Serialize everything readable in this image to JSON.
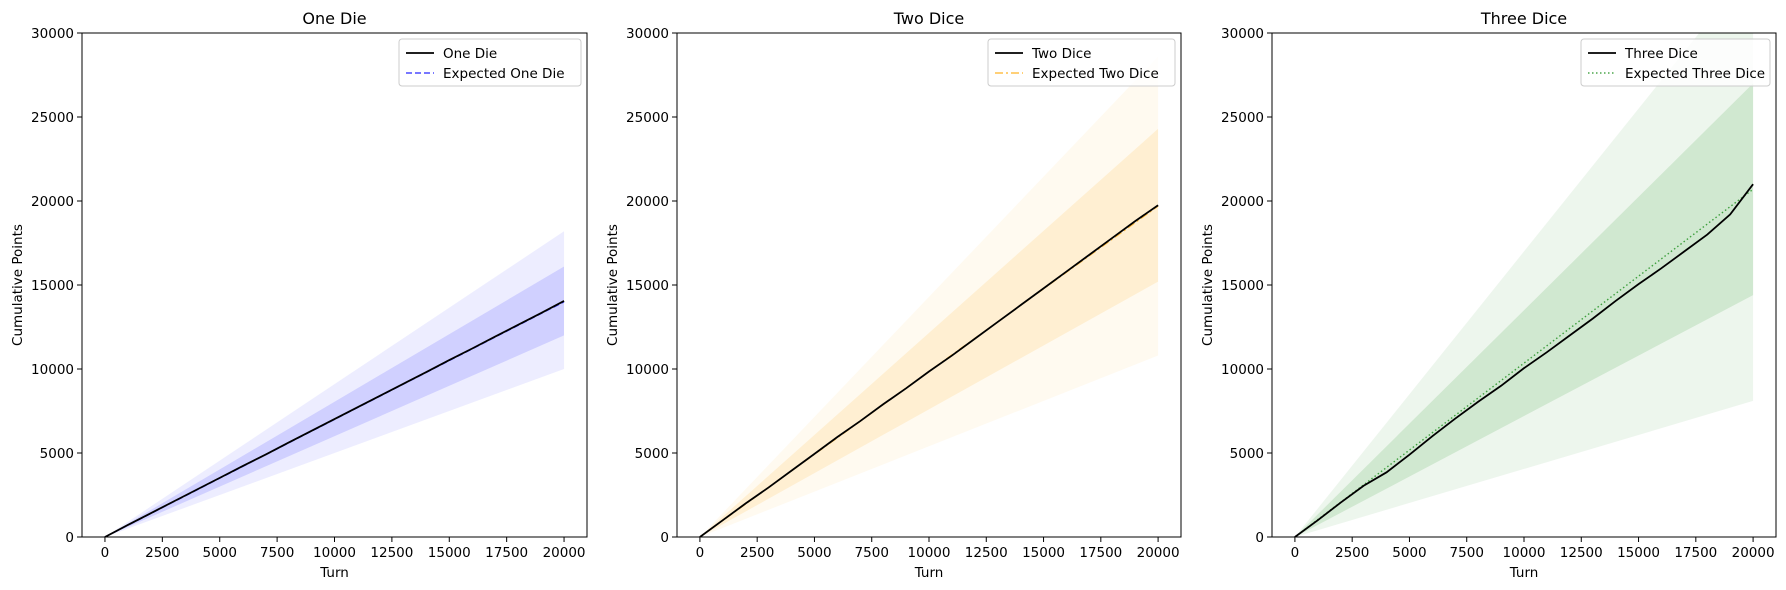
{
  "colors": {
    "actual": "#000000",
    "one_die": "#0000ff",
    "two_dice": "#ffa500",
    "three_dice": "#008000",
    "legend_frame": "#cccccc"
  },
  "chart_data": [
    {
      "type": "line",
      "title": "One Die",
      "xlabel": "Turn",
      "ylabel": "Cumulative Points",
      "xlim": [
        -1000,
        21000
      ],
      "ylim": [
        0,
        30000
      ],
      "xticks": [
        0,
        2500,
        5000,
        7500,
        10000,
        12500,
        15000,
        17500,
        20000
      ],
      "yticks": [
        0,
        5000,
        10000,
        15000,
        20000,
        25000,
        30000
      ],
      "xtick_labels": [
        "0",
        "2500",
        "5000",
        "7500",
        "10000",
        "12500",
        "15000",
        "17500",
        "20000"
      ],
      "ytick_labels": [
        "0",
        "5000",
        "10000",
        "15000",
        "20000",
        "25000",
        "30000"
      ],
      "grid": false,
      "legend_position": "upper right",
      "accent": "#0000ff",
      "bands": [
        {
          "opacity": 0.07,
          "x": [
            0,
            20000
          ],
          "lower": [
            0,
            10000
          ],
          "upper": [
            0,
            18200
          ]
        },
        {
          "opacity": 0.12,
          "x": [
            0,
            20000
          ],
          "lower": [
            0,
            12000
          ],
          "upper": [
            0,
            16100
          ]
        }
      ],
      "series": [
        {
          "name": "One Die",
          "role": "actual",
          "style": "solid",
          "x": [
            0,
            1000,
            2000,
            3000,
            4000,
            5000,
            6000,
            7000,
            8000,
            9000,
            10000,
            11000,
            12000,
            13000,
            14000,
            15000,
            16000,
            17000,
            18000,
            19000,
            20000
          ],
          "y": [
            0,
            720,
            1420,
            2120,
            2820,
            3520,
            4220,
            4910,
            5620,
            6320,
            7020,
            7720,
            8420,
            9120,
            9820,
            10530,
            11220,
            11930,
            12630,
            13330,
            14050
          ]
        },
        {
          "name": "Expected One Die",
          "role": "expected",
          "style": "dashed",
          "x": [
            0,
            20000
          ],
          "y": [
            0,
            14000
          ]
        }
      ]
    },
    {
      "type": "line",
      "title": "Two Dice",
      "xlabel": "Turn",
      "ylabel": "Cumulative Points",
      "xlim": [
        -1000,
        21000
      ],
      "ylim": [
        0,
        30000
      ],
      "xticks": [
        0,
        2500,
        5000,
        7500,
        10000,
        12500,
        15000,
        17500,
        20000
      ],
      "yticks": [
        0,
        5000,
        10000,
        15000,
        20000,
        25000,
        30000
      ],
      "xtick_labels": [
        "0",
        "2500",
        "5000",
        "7500",
        "10000",
        "12500",
        "15000",
        "17500",
        "20000"
      ],
      "ytick_labels": [
        "0",
        "5000",
        "10000",
        "15000",
        "20000",
        "25000",
        "30000"
      ],
      "grid": false,
      "legend_position": "upper right",
      "accent": "#ffa500",
      "bands": [
        {
          "opacity": 0.06,
          "x": [
            0,
            20000
          ],
          "lower": [
            0,
            10800
          ],
          "upper": [
            0,
            28600
          ]
        },
        {
          "opacity": 0.12,
          "x": [
            0,
            20000
          ],
          "lower": [
            0,
            15200
          ],
          "upper": [
            0,
            24300
          ]
        }
      ],
      "series": [
        {
          "name": "Two Dice",
          "role": "actual",
          "style": "solid",
          "x": [
            0,
            1000,
            2000,
            3000,
            4000,
            5000,
            6000,
            7000,
            8000,
            9000,
            10000,
            11000,
            12000,
            13000,
            14000,
            15000,
            16000,
            17000,
            18000,
            19000,
            20000
          ],
          "y": [
            0,
            1000,
            2000,
            2950,
            3950,
            4950,
            5950,
            6900,
            7900,
            8850,
            9850,
            10800,
            11800,
            12800,
            13800,
            14800,
            15800,
            16800,
            17800,
            18800,
            19750
          ]
        },
        {
          "name": "Expected Two Dice",
          "role": "expected",
          "style": "dashdot",
          "x": [
            0,
            20000
          ],
          "y": [
            0,
            19700
          ]
        }
      ]
    },
    {
      "type": "line",
      "title": "Three Dice",
      "xlabel": "Turn",
      "ylabel": "Cumulative Points",
      "xlim": [
        -1000,
        21000
      ],
      "ylim": [
        0,
        30000
      ],
      "xticks": [
        0,
        2500,
        5000,
        7500,
        10000,
        12500,
        15000,
        17500,
        20000
      ],
      "yticks": [
        0,
        5000,
        10000,
        15000,
        20000,
        25000,
        30000
      ],
      "xtick_labels": [
        "0",
        "2500",
        "5000",
        "7500",
        "10000",
        "12500",
        "15000",
        "17500",
        "20000"
      ],
      "ytick_labels": [
        "0",
        "5000",
        "10000",
        "15000",
        "20000",
        "25000",
        "30000"
      ],
      "grid": false,
      "legend_position": "upper right",
      "accent": "#008000",
      "bands": [
        {
          "opacity": 0.07,
          "x": [
            0,
            20000
          ],
          "lower": [
            0,
            8100
          ],
          "upper": [
            0,
            34000
          ]
        },
        {
          "opacity": 0.12,
          "x": [
            0,
            20000
          ],
          "lower": [
            0,
            14400
          ],
          "upper": [
            0,
            27000
          ]
        }
      ],
      "series": [
        {
          "name": "Three Dice",
          "role": "actual",
          "style": "solid",
          "x": [
            0,
            1000,
            2000,
            3000,
            4000,
            5000,
            6000,
            7000,
            8000,
            9000,
            10000,
            11000,
            12000,
            13000,
            14000,
            15000,
            16000,
            17000,
            18000,
            19000,
            20000
          ],
          "y": [
            0,
            1000,
            2050,
            3050,
            3850,
            4900,
            6000,
            7050,
            8050,
            9000,
            10050,
            11000,
            12000,
            13000,
            14050,
            15050,
            16000,
            17000,
            18000,
            19200,
            21000
          ]
        },
        {
          "name": "Expected Three Dice",
          "role": "expected",
          "style": "dotted",
          "x": [
            0,
            20000
          ],
          "y": [
            0,
            20700
          ]
        }
      ]
    }
  ]
}
